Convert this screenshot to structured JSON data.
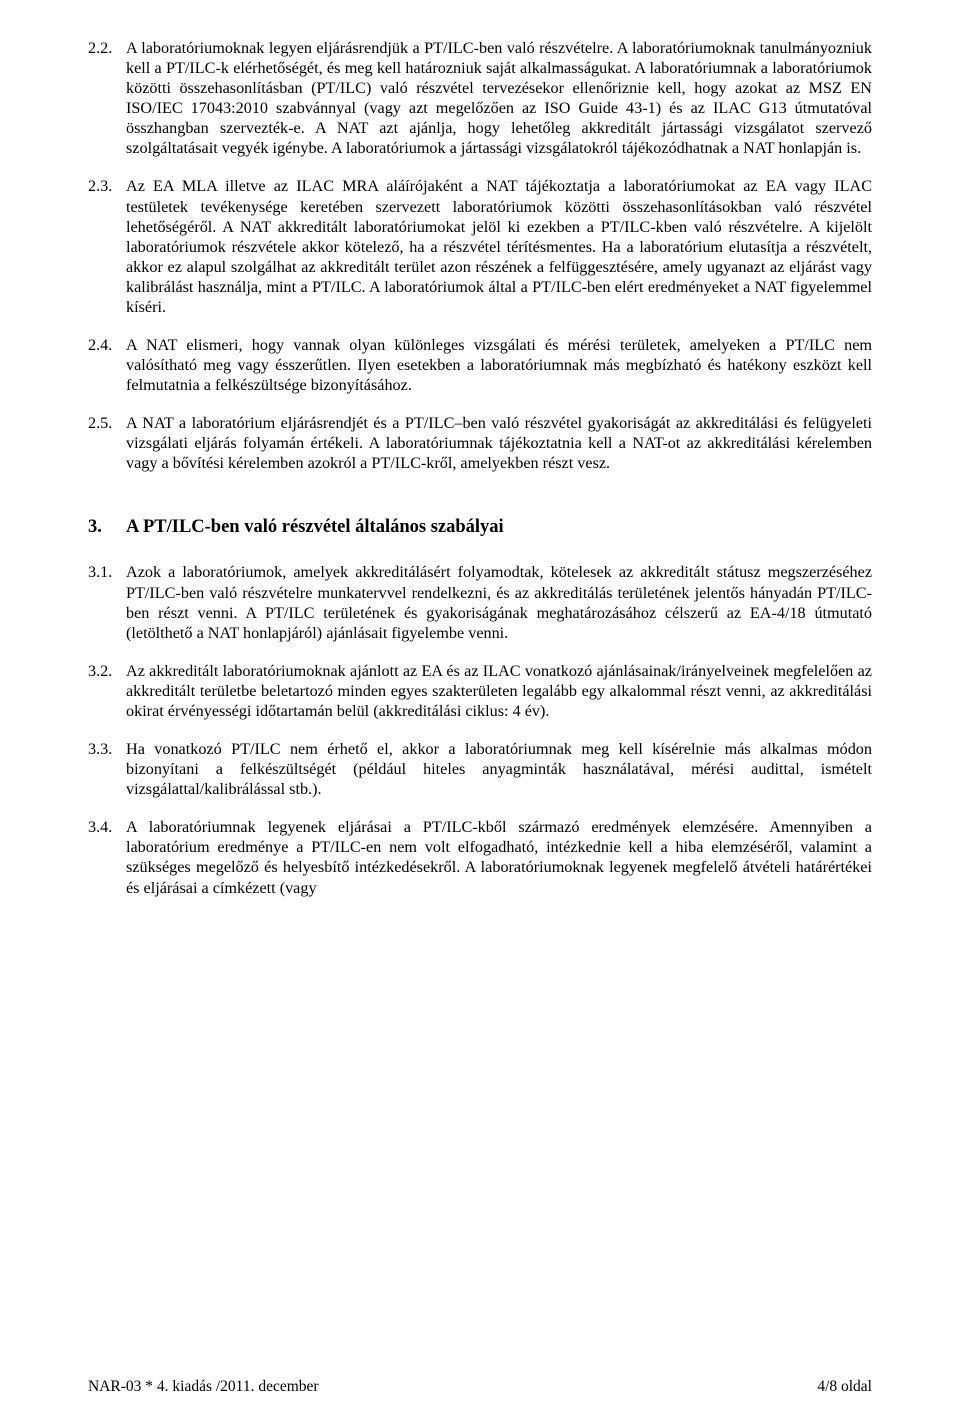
{
  "p22_num": "2.2.",
  "p22_body": "A laboratóriumoknak legyen eljárásrendjük a PT/ILC-ben való részvételre. A laboratóriumoknak tanulmányozniuk kell a PT/ILC-k elérhetőségét, és meg kell határozniuk saját alkalmasságukat. A laboratóriumnak a laboratóriumok közötti összehasonlításban (PT/ILC) való részvétel tervezésekor ellenőriznie kell, hogy azokat az MSZ EN ISO/IEC 17043:2010 szabvánnyal (vagy azt megelőzően az ISO Guide 43-1) és az ILAC G13 útmutatóval összhangban szervezték-e. A NAT azt ajánlja, hogy lehetőleg akkreditált jártassági vizsgálatot szervező szolgáltatásait vegyék igénybe. A laboratóriumok a jártassági vizsgálatokról tájékozódhatnak a NAT honlapján is.",
  "p23_num": "2.3.",
  "p23_body": "Az EA MLA illetve az ILAC MRA aláírójaként a NAT tájékoztatja a laboratóriumokat az EA vagy ILAC testületek tevékenysége keretében szervezett laboratóriumok közötti összehasonlításokban való részvétel lehetőségéről. A NAT akkreditált laboratóriumokat jelöl ki ezekben a PT/ILC-kben való részvételre. A kijelölt laboratóriumok részvétele akkor kötelező, ha a részvétel térítésmentes. Ha a laboratórium elutasítja a részvételt, akkor ez alapul szolgálhat az akkreditált terület azon részének a felfüggesztésére, amely ugyanazt az eljárást vagy kalibrálást használja, mint a PT/ILC. A laboratóriumok által a PT/ILC-ben elért eredményeket a NAT figyelemmel kíséri.",
  "p24_num": "2.4.",
  "p24_body": "A NAT elismeri, hogy vannak olyan különleges vizsgálati és mérési területek, amelyeken a PT/ILC nem valósítható meg vagy ésszerűtlen. Ilyen esetekben a laboratóriumnak más megbízható és hatékony eszközt kell felmutatnia a felkészültsége bizonyításához.",
  "p25_num": "2.5.",
  "p25_body": "A NAT a laboratórium eljárásrendjét és a PT/ILC–ben való részvétel gyakoriságát az akkreditálási és felügyeleti vizsgálati eljárás folyamán értékeli. A laboratóriumnak tájékoztatnia kell a NAT-ot az akkreditálási kérelemben vagy a bővítési kérelemben azokról a PT/ILC-kről, amelyekben részt vesz.",
  "section3_num": "3.",
  "section3_title": "A PT/ILC-ben való részvétel általános szabályai",
  "p31_num": "3.1.",
  "p31_body": "Azok a laboratóriumok, amelyek akkreditálásért folyamodtak, kötelesek az akkreditált státusz megszerzéséhez PT/ILC-ben való részvételre munkatervvel rendelkezni, és az akkreditálás területének jelentős hányadán PT/ILC-ben részt venni. A PT/ILC területének és gyakoriságának meghatározásához célszerű az EA-4/18 útmutató (letölthető a NAT honlapjáról) ajánlásait figyelembe venni.",
  "p32_num": "3.2.",
  "p32_body": "Az akkreditált laboratóriumoknak ajánlott az EA és az ILAC vonatkozó ajánlásainak/irányelveinek megfelelően az akkreditált területbe beletartozó minden egyes szakterületen legalább egy alkalommal részt venni, az akkreditálási okirat érvényességi időtartamán belül (akkreditálási ciklus: 4 év).",
  "p33_num": "3.3.",
  "p33_body": "Ha vonatkozó PT/ILC nem érhető el, akkor a laboratóriumnak meg kell kísérelnie más alkalmas módon bizonyítani a felkészültségét (például hiteles anyagminták használatával, mérési audittal, ismételt vizsgálattal/kalibrálással stb.).",
  "p34_num": "3.4.",
  "p34_body": "A laboratóriumnak legyenek eljárásai a PT/ILC-kből származó eredmények elemzésére. Amennyiben a laboratórium eredménye a PT/ILC-en nem volt elfogadható, intézkednie kell a hiba elemzéséről, valamint a szükséges megelőző és helyesbítő intézkedésekről. A laboratóriumoknak legyenek megfelelő átvételi határértékei és eljárásai a címkézett (vagy",
  "footer_left": "NAR-03 * 4. kiadás /2011. december",
  "footer_right": "4/8 oldal"
}
